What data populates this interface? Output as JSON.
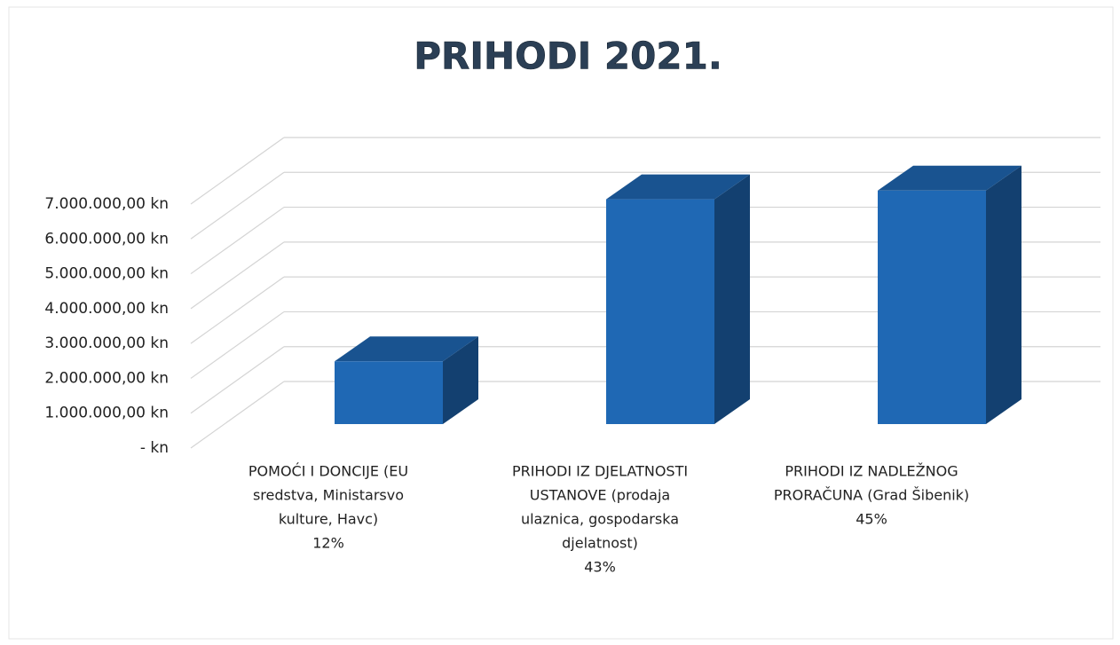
{
  "chart_data": {
    "type": "bar3d",
    "title": "PRIHODI 2021.",
    "categories": [
      [
        "POMOĆI I DONCIJE (EU",
        "sredstva, Ministarsvo",
        "kulture, Havc)",
        "12%"
      ],
      [
        "PRIHODI IZ DJELATNOSTI",
        "USTANOVE (prodaja",
        "ulaznica, gospodarska",
        "djelatnost)",
        "43%"
      ],
      [
        "PRIHODI IZ NADLEŽNOG",
        "PRORAČUNA (Grad Šibenik)",
        "45%"
      ]
    ],
    "values": [
      1800000,
      6450000,
      6700000
    ],
    "color": "#1f68b4",
    "ylim": [
      0,
      7000000
    ],
    "yticks": [
      {
        "value": 0,
        "label": "-   kn"
      },
      {
        "value": 1000000,
        "label": "1.000.000,00 kn"
      },
      {
        "value": 2000000,
        "label": "2.000.000,00 kn"
      },
      {
        "value": 3000000,
        "label": "3.000.000,00 kn"
      },
      {
        "value": 4000000,
        "label": "4.000.000,00 kn"
      },
      {
        "value": 5000000,
        "label": "5.000.000,00 kn"
      },
      {
        "value": 6000000,
        "label": "6.000.000,00 kn"
      },
      {
        "value": 7000000,
        "label": "7.000.000,00 kn"
      }
    ],
    "grid": true
  }
}
